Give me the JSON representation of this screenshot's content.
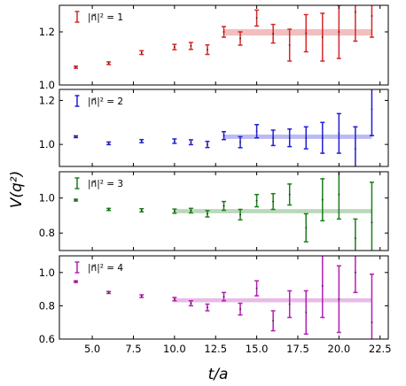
{
  "chart_data": {
    "type": "scatter",
    "xlabel": "t/a",
    "ylabel": "V(q²)",
    "xlim": [
      3.0,
      23.0
    ],
    "xticks": [
      5.0,
      7.5,
      10.0,
      12.5,
      15.0,
      17.5,
      20.0,
      22.5
    ],
    "xtick_labels": [
      "5.0",
      "7.5",
      "10.0",
      "12.5",
      "15.0",
      "17.5",
      "20.0",
      "22.5"
    ],
    "panels": [
      {
        "legend": "|n⃗|² = 1",
        "color": "#d62728",
        "ylim": [
          1.0,
          1.3
        ],
        "yticks": [
          1.0,
          1.2
        ],
        "ytick_labels": [
          "1.0",
          "1.2"
        ],
        "points": [
          {
            "x": 4,
            "y": 1.067,
            "err": 0.004
          },
          {
            "x": 6,
            "y": 1.082,
            "err": 0.005
          },
          {
            "x": 8,
            "y": 1.122,
            "err": 0.007
          },
          {
            "x": 10,
            "y": 1.143,
            "err": 0.01
          },
          {
            "x": 11,
            "y": 1.147,
            "err": 0.013
          },
          {
            "x": 12,
            "y": 1.133,
            "err": 0.018
          },
          {
            "x": 13,
            "y": 1.2,
            "err": 0.02
          },
          {
            "x": 14,
            "y": 1.175,
            "err": 0.025
          },
          {
            "x": 15,
            "y": 1.252,
            "err": 0.03
          },
          {
            "x": 16,
            "y": 1.193,
            "err": 0.035
          },
          {
            "x": 17,
            "y": 1.15,
            "err": 0.06
          },
          {
            "x": 18,
            "y": 1.195,
            "err": 0.07
          },
          {
            "x": 19,
            "y": 1.18,
            "err": 0.09
          },
          {
            "x": 20,
            "y": 1.2,
            "err": 0.1
          },
          {
            "x": 21,
            "y": 1.275,
            "err": 0.11
          },
          {
            "x": 22,
            "y": 1.26,
            "err": 0.08
          }
        ],
        "fit": {
          "x_start": 13,
          "x_end": 22,
          "value": 1.198,
          "err": 0.012
        }
      },
      {
        "legend": "|n⃗|² = 2",
        "color": "#1f1fd6",
        "ylim": [
          0.9,
          1.25
        ],
        "yticks": [
          1.0,
          1.2
        ],
        "ytick_labels": [
          "1.0",
          "1.2"
        ],
        "points": [
          {
            "x": 4,
            "y": 1.035,
            "err": 0.004
          },
          {
            "x": 6,
            "y": 1.005,
            "err": 0.006
          },
          {
            "x": 8,
            "y": 1.015,
            "err": 0.007
          },
          {
            "x": 10,
            "y": 1.015,
            "err": 0.01
          },
          {
            "x": 11,
            "y": 1.01,
            "err": 0.011
          },
          {
            "x": 12,
            "y": 1.0,
            "err": 0.014
          },
          {
            "x": 13,
            "y": 1.04,
            "err": 0.018
          },
          {
            "x": 14,
            "y": 1.01,
            "err": 0.025
          },
          {
            "x": 15,
            "y": 1.06,
            "err": 0.03
          },
          {
            "x": 16,
            "y": 1.03,
            "err": 0.035
          },
          {
            "x": 17,
            "y": 1.03,
            "err": 0.04
          },
          {
            "x": 18,
            "y": 1.03,
            "err": 0.05
          },
          {
            "x": 19,
            "y": 1.03,
            "err": 0.07
          },
          {
            "x": 20,
            "y": 1.05,
            "err": 0.09
          },
          {
            "x": 21,
            "y": 0.98,
            "err": 0.1
          },
          {
            "x": 22,
            "y": 1.16,
            "err": 0.12
          }
        ],
        "fit": {
          "x_start": 13,
          "x_end": 22,
          "value": 1.035,
          "err": 0.01
        }
      },
      {
        "legend": "|n⃗|² = 3",
        "color": "#1a7f1a",
        "ylim": [
          0.7,
          1.15
        ],
        "yticks": [
          0.8,
          1.0
        ],
        "ytick_labels": [
          "0.8",
          "1.0"
        ],
        "points": [
          {
            "x": 4,
            "y": 0.988,
            "err": 0.005
          },
          {
            "x": 6,
            "y": 0.935,
            "err": 0.006
          },
          {
            "x": 8,
            "y": 0.93,
            "err": 0.009
          },
          {
            "x": 10,
            "y": 0.925,
            "err": 0.012
          },
          {
            "x": 11,
            "y": 0.928,
            "err": 0.013
          },
          {
            "x": 12,
            "y": 0.91,
            "err": 0.018
          },
          {
            "x": 13,
            "y": 0.955,
            "err": 0.025
          },
          {
            "x": 14,
            "y": 0.905,
            "err": 0.03
          },
          {
            "x": 15,
            "y": 0.985,
            "err": 0.035
          },
          {
            "x": 16,
            "y": 0.98,
            "err": 0.045
          },
          {
            "x": 17,
            "y": 1.02,
            "err": 0.06
          },
          {
            "x": 18,
            "y": 0.83,
            "err": 0.08
          },
          {
            "x": 19,
            "y": 0.99,
            "err": 0.12
          },
          {
            "x": 20,
            "y": 1.02,
            "err": 0.14
          },
          {
            "x": 21,
            "y": 0.77,
            "err": 0.11
          },
          {
            "x": 22,
            "y": 0.86,
            "err": 0.23
          }
        ],
        "fit": {
          "x_start": 10,
          "x_end": 22,
          "value": 0.925,
          "err": 0.012
        }
      },
      {
        "legend": "|n⃗|² = 4",
        "color": "#b31eb3",
        "ylim": [
          0.6,
          1.1
        ],
        "yticks": [
          0.6,
          0.8,
          1.0
        ],
        "ytick_labels": [
          "0.6",
          "0.8",
          "1.0"
        ],
        "points": [
          {
            "x": 4,
            "y": 0.945,
            "err": 0.005
          },
          {
            "x": 6,
            "y": 0.88,
            "err": 0.006
          },
          {
            "x": 8,
            "y": 0.858,
            "err": 0.008
          },
          {
            "x": 10,
            "y": 0.84,
            "err": 0.01
          },
          {
            "x": 11,
            "y": 0.815,
            "err": 0.015
          },
          {
            "x": 12,
            "y": 0.79,
            "err": 0.02
          },
          {
            "x": 13,
            "y": 0.855,
            "err": 0.025
          },
          {
            "x": 14,
            "y": 0.78,
            "err": 0.035
          },
          {
            "x": 15,
            "y": 0.905,
            "err": 0.045
          },
          {
            "x": 16,
            "y": 0.71,
            "err": 0.06
          },
          {
            "x": 17,
            "y": 0.81,
            "err": 0.08
          },
          {
            "x": 18,
            "y": 0.76,
            "err": 0.13
          },
          {
            "x": 19,
            "y": 0.92,
            "err": 0.19
          },
          {
            "x": 20,
            "y": 0.84,
            "err": 0.2
          },
          {
            "x": 21,
            "y": 1.0,
            "err": 0.12
          },
          {
            "x": 22,
            "y": 0.7,
            "err": 0.29
          }
        ],
        "fit": {
          "x_start": 10,
          "x_end": 22,
          "value": 0.833,
          "err": 0.012
        }
      }
    ]
  }
}
